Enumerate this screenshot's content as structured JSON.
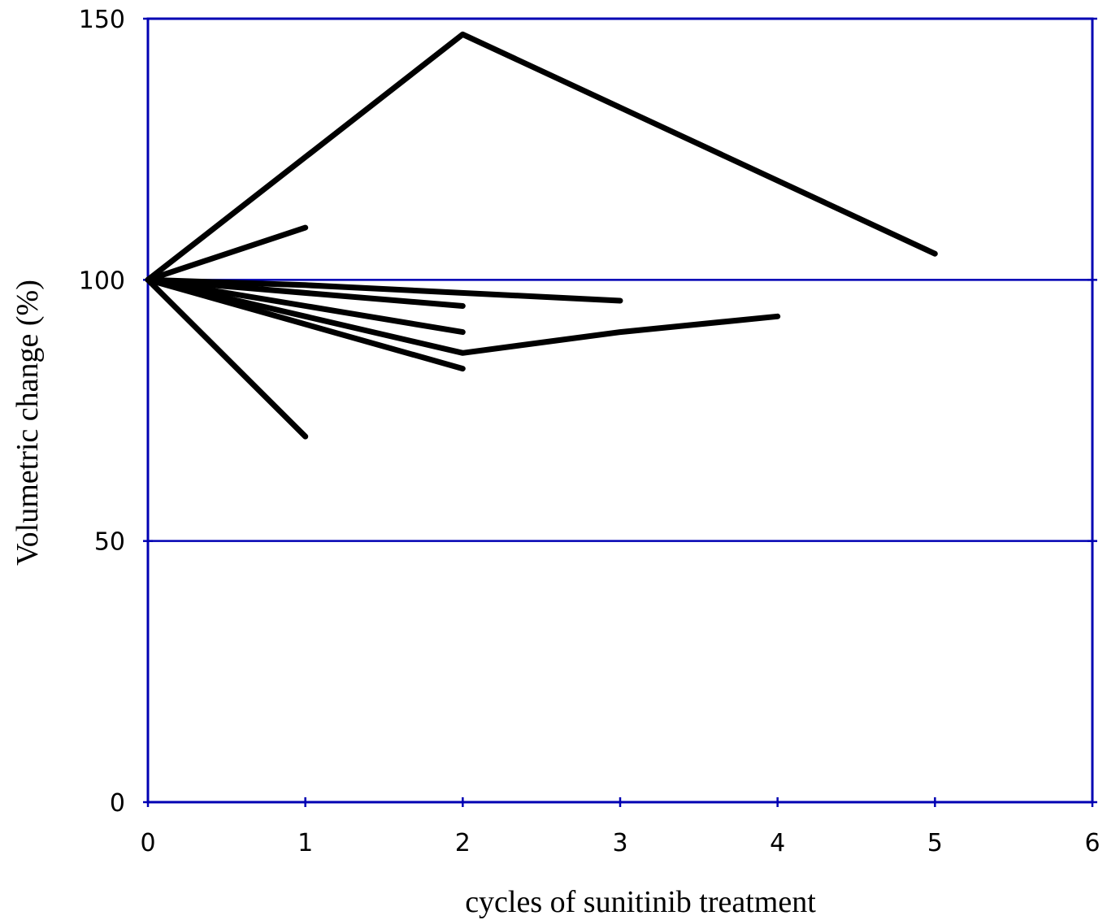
{
  "chart_data": {
    "type": "line",
    "title": "",
    "xlabel": "cycles of sunitinib treatment",
    "ylabel": "Volumetric change (%)",
    "xlim": [
      0,
      6
    ],
    "ylim": [
      0,
      150
    ],
    "x_ticks": [
      "0",
      "1",
      "2",
      "3",
      "4",
      "5",
      "6"
    ],
    "y_ticks": [
      "0",
      "50",
      "100",
      "150"
    ],
    "y_gridlines": [
      50,
      100,
      150
    ],
    "grid": true,
    "legend": "none",
    "line_color": "#000000",
    "frame_color": "#0000b3",
    "series": [
      {
        "x": [
          0,
          2,
          5
        ],
        "y": [
          100,
          147,
          105
        ]
      },
      {
        "x": [
          0,
          1
        ],
        "y": [
          100,
          110
        ]
      },
      {
        "x": [
          0,
          1,
          3
        ],
        "y": [
          100,
          99,
          96
        ]
      },
      {
        "x": [
          0,
          2
        ],
        "y": [
          100,
          95
        ]
      },
      {
        "x": [
          0,
          2
        ],
        "y": [
          100,
          90
        ]
      },
      {
        "x": [
          0,
          2,
          3,
          4
        ],
        "y": [
          100,
          86,
          90,
          93
        ]
      },
      {
        "x": [
          0,
          2
        ],
        "y": [
          100,
          83
        ]
      },
      {
        "x": [
          0,
          1
        ],
        "y": [
          100,
          70
        ]
      }
    ]
  }
}
